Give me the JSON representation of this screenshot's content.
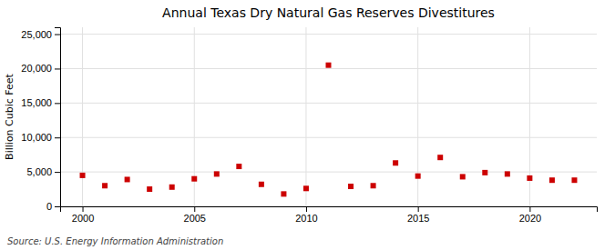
{
  "chart_data": {
    "type": "scatter",
    "title": "Annual Texas Dry Natural Gas Reserves Divestitures",
    "ylabel": "Billion Cubic Feet",
    "source": "Source: U.S. Energy Information Administration",
    "x": [
      2000,
      2001,
      2002,
      2003,
      2004,
      2005,
      2006,
      2007,
      2008,
      2009,
      2010,
      2011,
      2012,
      2013,
      2014,
      2015,
      2016,
      2017,
      2018,
      2019,
      2020,
      2021,
      2022
    ],
    "values": [
      4500,
      3000,
      3900,
      2500,
      2800,
      4000,
      4700,
      5800,
      3200,
      1800,
      2600,
      20500,
      2900,
      3000,
      6300,
      4400,
      7100,
      4300,
      4900,
      4700,
      4100,
      3800,
      3800
    ],
    "color": "#cc0000",
    "marker": "square",
    "xlim": [
      1999,
      2023
    ],
    "xticks": [
      2000,
      2005,
      2010,
      2015,
      2020
    ],
    "ylim": [
      0,
      26000
    ],
    "yticks": [
      0,
      {
        "value": 5000,
        "label": "5,000"
      },
      {
        "value": 10000,
        "label": "10,000"
      },
      {
        "value": 15000,
        "label": "15,000"
      },
      {
        "value": 20000,
        "label": "20,000"
      },
      {
        "value": 25000,
        "label": "25,000"
      }
    ],
    "grid": true
  }
}
